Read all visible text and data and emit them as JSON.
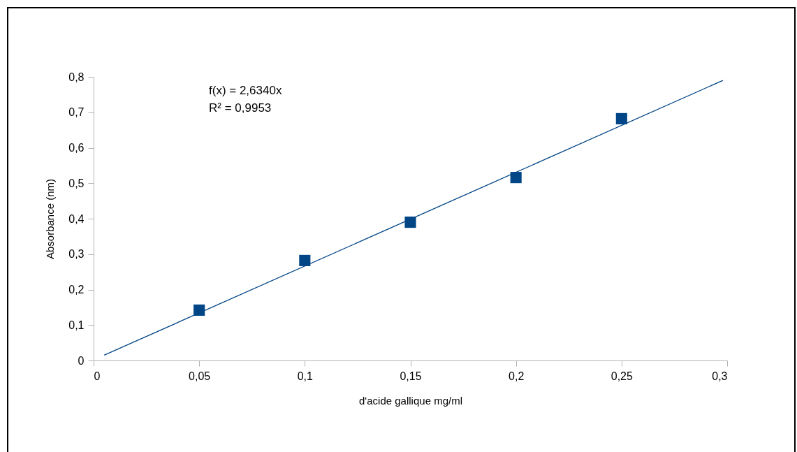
{
  "chart_data": {
    "type": "scatter",
    "xlabel": "d'acide gallique mg/ml",
    "ylabel": "Absorbance (nm)",
    "x": [
      0.05,
      0.1,
      0.15,
      0.2,
      0.25
    ],
    "series": [
      {
        "type": "scatter",
        "color": "#004586",
        "marker": "square",
        "values": [
          0.142,
          0.282,
          0.39,
          0.516,
          0.682
        ]
      },
      {
        "type": "line",
        "color": "#004586",
        "marker": "none",
        "line_style": "solid",
        "x": [
          0.005,
          0.298
        ],
        "values": [
          0.015,
          0.79
        ]
      }
    ],
    "xlim": [
      0,
      0.3
    ],
    "xticks": [
      0,
      {
        "value": 0.05,
        "label": "0,05"
      },
      {
        "value": 0.1,
        "label": "0,1"
      },
      {
        "value": 0.15,
        "label": "0,15"
      },
      {
        "value": 0.2,
        "label": "0,2"
      },
      {
        "value": 0.25,
        "label": "0,25"
      },
      {
        "value": 0.3,
        "label": "0,3"
      }
    ],
    "ylim": [
      0,
      0.8
    ],
    "yticks": [
      0,
      {
        "value": 0.1,
        "label": "0,1"
      },
      {
        "value": 0.2,
        "label": "0,2"
      },
      {
        "value": 0.3,
        "label": "0,3"
      },
      {
        "value": 0.4,
        "label": "0,4"
      },
      {
        "value": 0.5,
        "label": "0,5"
      },
      {
        "value": 0.6,
        "label": "0,6"
      },
      {
        "value": 0.7,
        "label": "0,7"
      },
      {
        "value": 0.8,
        "label": "0,8"
      }
    ],
    "grid": false,
    "annotations": [
      "f(x) = 2,6340x",
      "R² = 0,9953"
    ]
  }
}
